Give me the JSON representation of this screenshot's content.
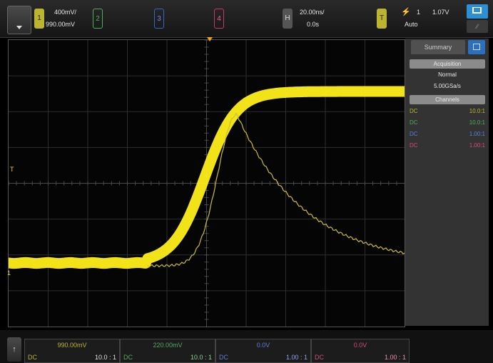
{
  "top": {
    "ch1_scale": "400mV/",
    "ch1_offset": "990.00mV",
    "ch2_label": "2",
    "ch3_label": "3",
    "ch4_label": "4",
    "h_label": "H",
    "h_scale": "20.00ns/",
    "h_delay": "0.0s",
    "t_label": "T",
    "trig_source": "1",
    "trig_level": "1.07V",
    "trig_mode": "Auto"
  },
  "side": {
    "title": "Summary",
    "acquisition_header": "Acquisition",
    "acq_mode": "Normal",
    "acq_rate": "5.00GSa/s",
    "channels_header": "Channels",
    "channels": [
      {
        "coupling": "DC",
        "probe": "10.0:1",
        "color": "#bdb431"
      },
      {
        "coupling": "DC",
        "probe": "10.0:1",
        "color": "#4fae59"
      },
      {
        "coupling": "DC",
        "probe": "1.00:1",
        "color": "#5a7fd8"
      },
      {
        "coupling": "DC",
        "probe": "1.00:1",
        "color": "#d34a7d"
      }
    ]
  },
  "bottom": {
    "channels": [
      {
        "value": "990.00mV",
        "coupling": "DC",
        "probe": "10.0 : 1",
        "color": "#bdb431"
      },
      {
        "value": "220.00mV",
        "coupling": "DC",
        "probe": "10.0 : 1",
        "color": "#4fae59"
      },
      {
        "value": "0.0V",
        "coupling": "DC",
        "probe": "1.00 : 1",
        "color": "#5a7fd8"
      },
      {
        "value": "0.0V",
        "coupling": "DC",
        "probe": "1.00 : 1",
        "color": "#d34a7d"
      }
    ]
  },
  "markers": {
    "trigger_level": "T",
    "ch1_ground": "1"
  },
  "colors": {
    "ch1": "#ffef1a",
    "ch2": "#4fae59",
    "ch3": "#5a7fd8",
    "ch4": "#d34a7d"
  }
}
